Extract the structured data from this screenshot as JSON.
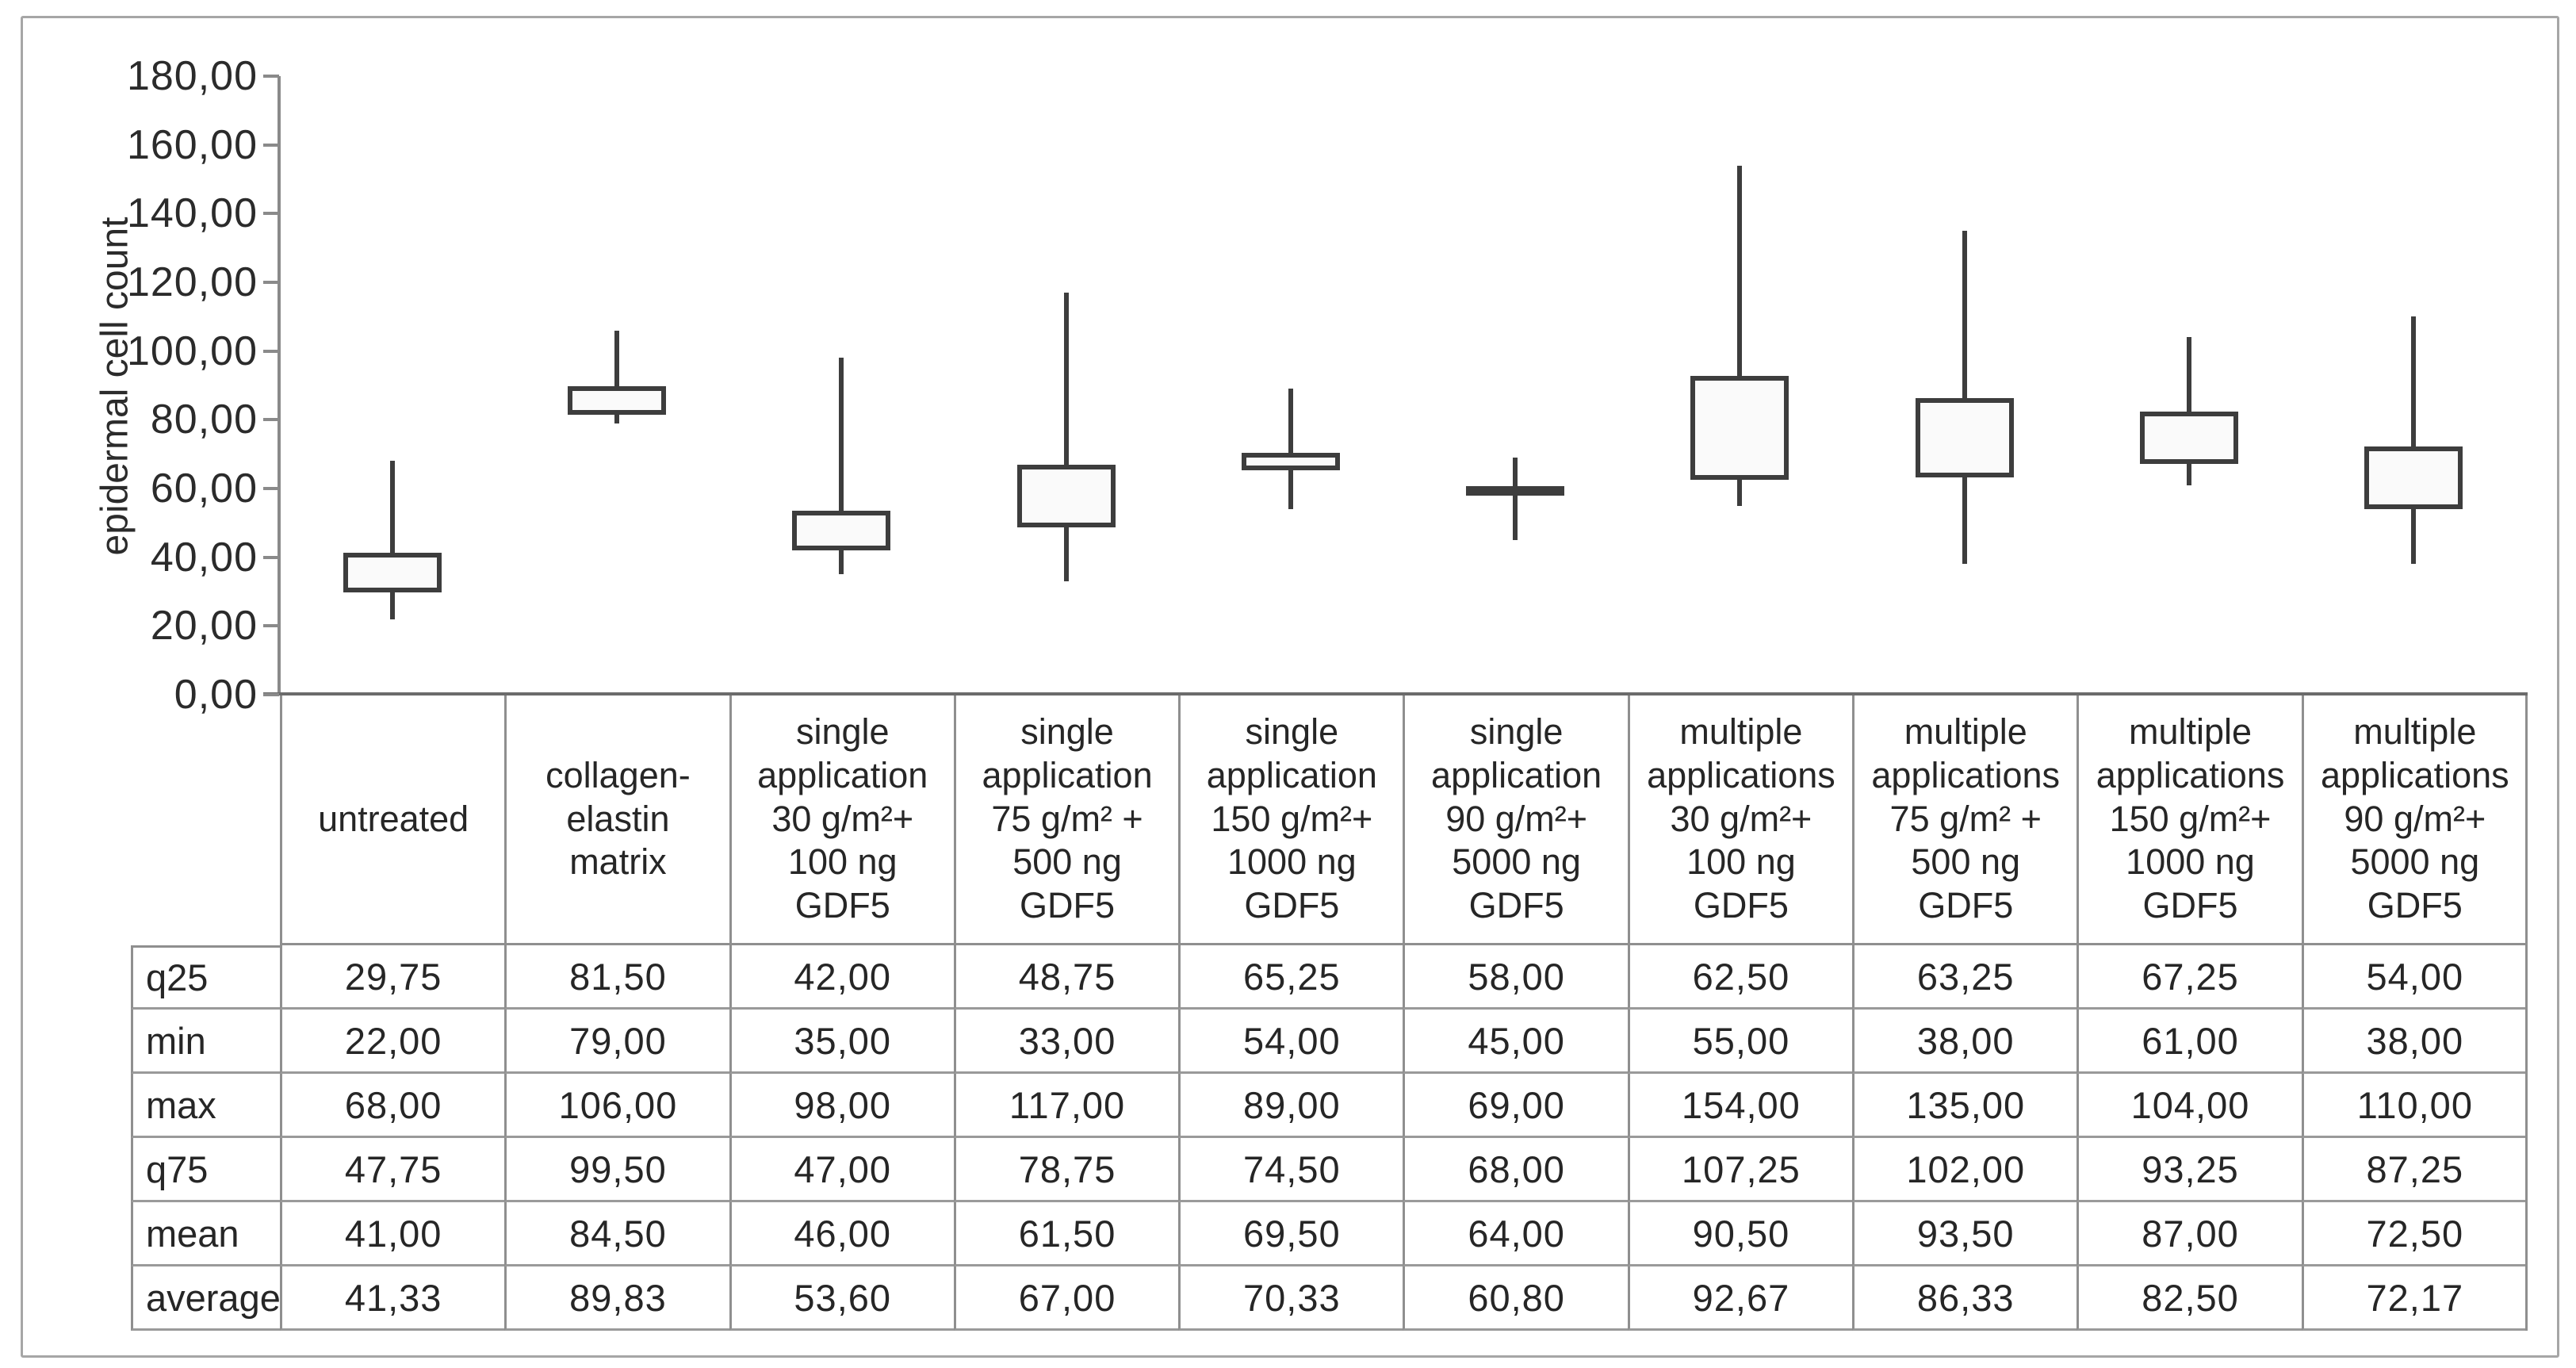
{
  "chart_data": {
    "type": "boxplot",
    "title": "",
    "ylabel": "epidermal cell count",
    "xlabel": "",
    "ylim": [
      0,
      180
    ],
    "ytick_step": 20,
    "ytick_labels": [
      "180,00",
      "160,00",
      "140,00",
      "120,00",
      "100,00",
      "80,00",
      "60,00",
      "40,00",
      "20,00",
      "0,00"
    ],
    "grid": "off",
    "legend": "none",
    "box_spans": "q25-to-average",
    "whisker_spans": "min-to-max",
    "categories": [
      "untreated",
      "collagen-elastin matrix",
      "single application 30 g/m²+ 100 ng GDF5",
      "single application 75 g/m² + 500 ng GDF5",
      "single application 150 g/m²+ 1000 ng GDF5",
      "single application 90 g/m²+ 5000 ng GDF5",
      "multiple applications 30 g/m²+ 100 ng GDF5",
      "multiple applications 75 g/m² + 500 ng GDF5",
      "multiple applications 150 g/m²+ 1000 ng GDF5",
      "multiple applications 90 g/m²+ 5000 ng GDF5"
    ],
    "series": [
      {
        "name": "q25",
        "values": [
          29.75,
          81.5,
          42.0,
          48.75,
          65.25,
          58.0,
          62.5,
          63.25,
          67.25,
          54.0
        ]
      },
      {
        "name": "min",
        "values": [
          22.0,
          79.0,
          35.0,
          33.0,
          54.0,
          45.0,
          55.0,
          38.0,
          61.0,
          38.0
        ]
      },
      {
        "name": "max",
        "values": [
          68.0,
          106.0,
          98.0,
          117.0,
          89.0,
          69.0,
          154.0,
          135.0,
          104.0,
          110.0
        ]
      },
      {
        "name": "q75",
        "values": [
          47.75,
          99.5,
          47.0,
          78.75,
          74.5,
          68.0,
          107.25,
          102.0,
          93.25,
          87.25
        ]
      },
      {
        "name": "mean",
        "values": [
          41.0,
          84.5,
          46.0,
          61.5,
          69.5,
          64.0,
          90.5,
          93.5,
          87.0,
          72.5
        ]
      },
      {
        "name": "average",
        "values": [
          41.33,
          89.83,
          53.6,
          67.0,
          70.33,
          60.8,
          92.67,
          86.33,
          82.5,
          72.17
        ]
      }
    ]
  },
  "table": {
    "column_headers": [
      "untreated",
      "collagen-\nelastin\nmatrix",
      "single\napplication\n30 g/m²+\n100 ng GDF5",
      "single\napplication\n75 g/m² +\n500 ng GDF5",
      "single\napplication\n150 g/m²+\n1000 ng\nGDF5",
      "single\napplication\n90 g/m²+\n5000 ng\nGDF5",
      "multiple\napplications\n30 g/m²+\n100 ng GDF5",
      "multiple\napplications\n75 g/m² +\n500 ng GDF5",
      "multiple\napplications\n150 g/m²+\n1000 ng\nGDF5",
      "multiple\napplications\n90 g/m²+\n5000 ng\nGDF5"
    ],
    "rows": [
      {
        "label": "q25",
        "values": [
          "29,75",
          "81,50",
          "42,00",
          "48,75",
          "65,25",
          "58,00",
          "62,50",
          "63,25",
          "67,25",
          "54,00"
        ]
      },
      {
        "label": "min",
        "values": [
          "22,00",
          "79,00",
          "35,00",
          "33,00",
          "54,00",
          "45,00",
          "55,00",
          "38,00",
          "61,00",
          "38,00"
        ]
      },
      {
        "label": "max",
        "values": [
          "68,00",
          "106,00",
          "98,00",
          "117,00",
          "89,00",
          "69,00",
          "154,00",
          "135,00",
          "104,00",
          "110,00"
        ]
      },
      {
        "label": "q75",
        "values": [
          "47,75",
          "99,50",
          "47,00",
          "78,75",
          "74,50",
          "68,00",
          "107,25",
          "102,00",
          "93,25",
          "87,25"
        ]
      },
      {
        "label": "mean",
        "values": [
          "41,00",
          "84,50",
          "46,00",
          "61,50",
          "69,50",
          "64,00",
          "90,50",
          "93,50",
          "87,00",
          "72,50"
        ]
      },
      {
        "label": "average",
        "values": [
          "41,33",
          "89,83",
          "53,60",
          "67,00",
          "70,33",
          "60,80",
          "92,67",
          "86,33",
          "82,50",
          "72,17"
        ]
      }
    ]
  },
  "colors": {
    "box_border": "#3d3d3d",
    "box_fill": "#fafafa",
    "whisker": "#3d3d3d",
    "axis_line": "#8a8a8a",
    "grid_line": "#8f8f8f",
    "frame_border": "#a6a6a6",
    "text": "#262626",
    "background": "#ffffff"
  }
}
